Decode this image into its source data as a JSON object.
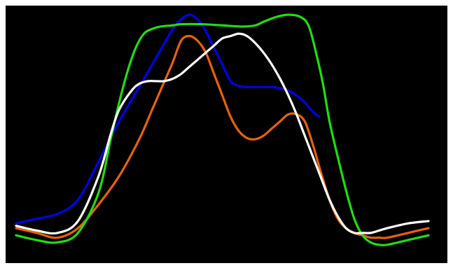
{
  "chart_data": {
    "type": "line",
    "title": "",
    "xlabel": "",
    "ylabel": "",
    "xlim": [
      0,
      100
    ],
    "ylim": [
      0,
      100
    ],
    "grid": false,
    "legend": "none",
    "background": "#000000",
    "series": [
      {
        "color": "#0000e6",
        "x": [
          0,
          5,
          10,
          15,
          20,
          25,
          30,
          35,
          38,
          40,
          42,
          44,
          46,
          48,
          50,
          52,
          54,
          56,
          58,
          60,
          62,
          64,
          66,
          68,
          70,
          72,
          73.5
        ],
        "y": [
          12,
          14,
          16,
          22,
          38,
          55,
          70,
          85,
          94,
          98,
          100,
          98,
          93,
          86,
          79,
          72,
          70,
          69.5,
          69.5,
          69.5,
          69.5,
          69,
          68,
          66,
          63,
          59,
          57
        ]
      },
      {
        "color": "#e8620a",
        "x": [
          0,
          5,
          10,
          15,
          20,
          25,
          30,
          33,
          36,
          38,
          40,
          42,
          44,
          46,
          48,
          50,
          52,
          54,
          56,
          58,
          60,
          62,
          64,
          66,
          68,
          70,
          72,
          74,
          76,
          78,
          80,
          82,
          84,
          86,
          88,
          90,
          95,
          100
        ],
        "y": [
          10,
          8,
          6,
          10,
          20,
          32,
          48,
          60,
          72,
          80,
          89,
          91,
          89,
          84,
          75,
          66,
          57,
          51,
          48,
          47.5,
          49,
          52,
          55,
          58,
          58,
          55,
          45,
          33,
          22,
          14,
          10,
          8,
          7,
          6,
          6,
          6,
          8,
          10
        ]
      },
      {
        "color": "#22dd11",
        "x": [
          0,
          5,
          10,
          15,
          20,
          23,
          25,
          27,
          29,
          31,
          33,
          35,
          38,
          40,
          45,
          50,
          55,
          58,
          60,
          63,
          66,
          69,
          71,
          73,
          74.5,
          76,
          78,
          80,
          82,
          84,
          86,
          88,
          90,
          95,
          100
        ],
        "y": [
          7,
          5,
          4,
          8,
          25,
          48,
          63,
          76,
          86,
          92,
          94,
          95,
          95.5,
          96,
          96,
          95.5,
          95,
          95.5,
          97,
          99,
          100,
          99,
          95,
          82,
          70,
          55,
          40,
          26,
          14,
          7,
          4,
          3,
          3,
          5,
          7
        ]
      },
      {
        "color": "#ffffff",
        "x": [
          0,
          5,
          10,
          15,
          20,
          23,
          25,
          28,
          30,
          32,
          34,
          36,
          38,
          40,
          42,
          44,
          46,
          48,
          50,
          52,
          54,
          56,
          58,
          60,
          62,
          64,
          66,
          68,
          70,
          72,
          74,
          76,
          78,
          80,
          82,
          84,
          86,
          88,
          90,
          95,
          100
        ],
        "y": [
          11,
          9,
          8,
          13,
          32,
          50,
          60,
          68,
          71,
          72,
          72,
          72,
          73,
          75,
          78,
          81,
          84,
          87,
          90,
          91,
          92,
          91,
          88,
          84,
          79,
          73,
          66,
          58,
          49,
          40,
          31,
          22,
          15,
          10,
          8,
          8,
          8,
          9,
          10,
          12,
          13
        ]
      }
    ]
  }
}
